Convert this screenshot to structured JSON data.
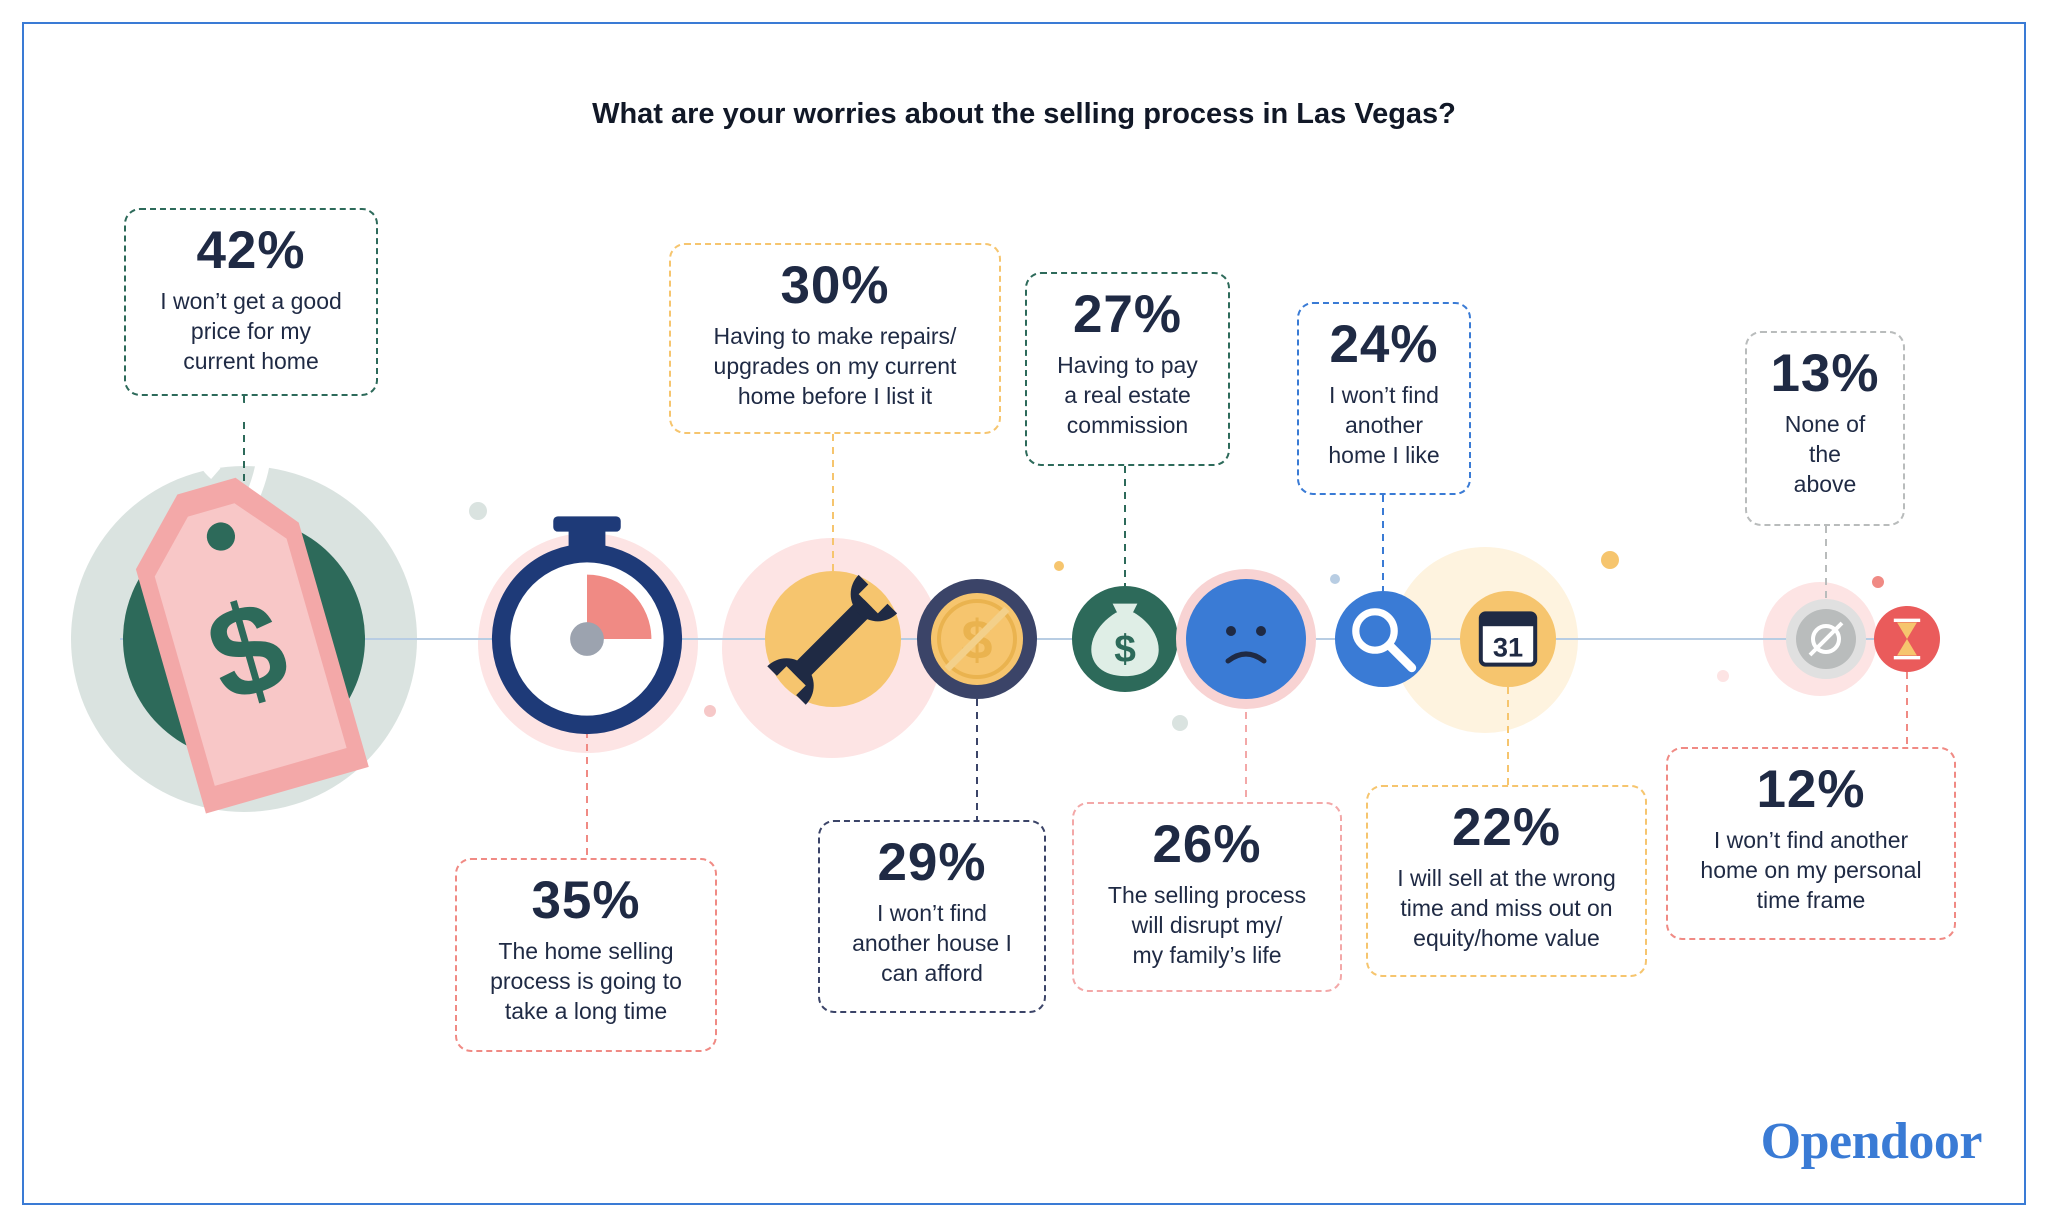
{
  "title": "What are your worries about the selling process in Las Vegas?",
  "logo": "Opendoor",
  "chart_data": {
    "type": "bar",
    "title": "What are your worries about the selling process in Las Vegas?",
    "categories": [
      "I won’t get a good price for my current home",
      "The home selling process is going to take a long time",
      "Having to make repairs/ upgrades on my current home before I list it",
      "I won’t find another house I can afford",
      "Having to pay a real estate commission",
      "The selling process will disrupt my/ my family’s life",
      "I won’t find another home I like",
      "I will sell at the wrong time and miss out on equity/home value",
      "None of the above",
      "I won’t find another home on my personal time frame"
    ],
    "values": [
      42,
      35,
      30,
      29,
      27,
      26,
      24,
      22,
      13,
      12
    ],
    "items": [
      {
        "pct": "42%",
        "lines": [
          "I won’t get a good",
          "price for my",
          "current home"
        ],
        "icon": "price-tag-icon",
        "color": "#2d6a5a",
        "border": "#2d6a5a"
      },
      {
        "pct": "35%",
        "lines": [
          "The home selling",
          "process is going to",
          "take a long time"
        ],
        "icon": "stopwatch-icon",
        "color": "#f08a84",
        "border": "#f08a84"
      },
      {
        "pct": "30%",
        "lines": [
          "Having to make repairs/",
          "upgrades on my current",
          "home before I list it"
        ],
        "icon": "wrench-icon",
        "color": "#f6c56e",
        "border": "#f6c56e"
      },
      {
        "pct": "29%",
        "lines": [
          "I won’t find",
          "another house I",
          "can afford"
        ],
        "icon": "no-money-coin-icon",
        "color": "#3b4468",
        "border": "#3b4468"
      },
      {
        "pct": "27%",
        "lines": [
          "Having to pay",
          "a real estate",
          "commission"
        ],
        "icon": "money-bag-icon",
        "color": "#2d6a5a",
        "border": "#2d6a5a"
      },
      {
        "pct": "26%",
        "lines": [
          "The selling process",
          "will disrupt my/",
          "my family’s life"
        ],
        "icon": "sad-face-icon",
        "color": "#3a7bd5",
        "border": "#f3a8a8"
      },
      {
        "pct": "24%",
        "lines": [
          "I won’t find",
          "another",
          "home I like"
        ],
        "icon": "magnifier-icon",
        "color": "#3a7bd5",
        "border": "#3a7bd5"
      },
      {
        "pct": "22%",
        "lines": [
          "I will sell at the wrong",
          "time and miss out on",
          "equity/home value"
        ],
        "icon": "calendar-icon",
        "color": "#f6c56e",
        "border": "#f6c56e"
      },
      {
        "pct": "13%",
        "lines": [
          "None of",
          "the",
          "above"
        ],
        "icon": "empty-set-icon",
        "color": "#b9bcbc",
        "border": "#b9bcbc"
      },
      {
        "pct": "12%",
        "lines": [
          "I won’t find another",
          "home on my personal",
          "time frame"
        ],
        "icon": "hourglass-icon",
        "color": "#ea5b5b",
        "border": "#f08a84"
      }
    ],
    "calendar_number": "31",
    "ylim": [
      0,
      100
    ],
    "legend": "none"
  }
}
